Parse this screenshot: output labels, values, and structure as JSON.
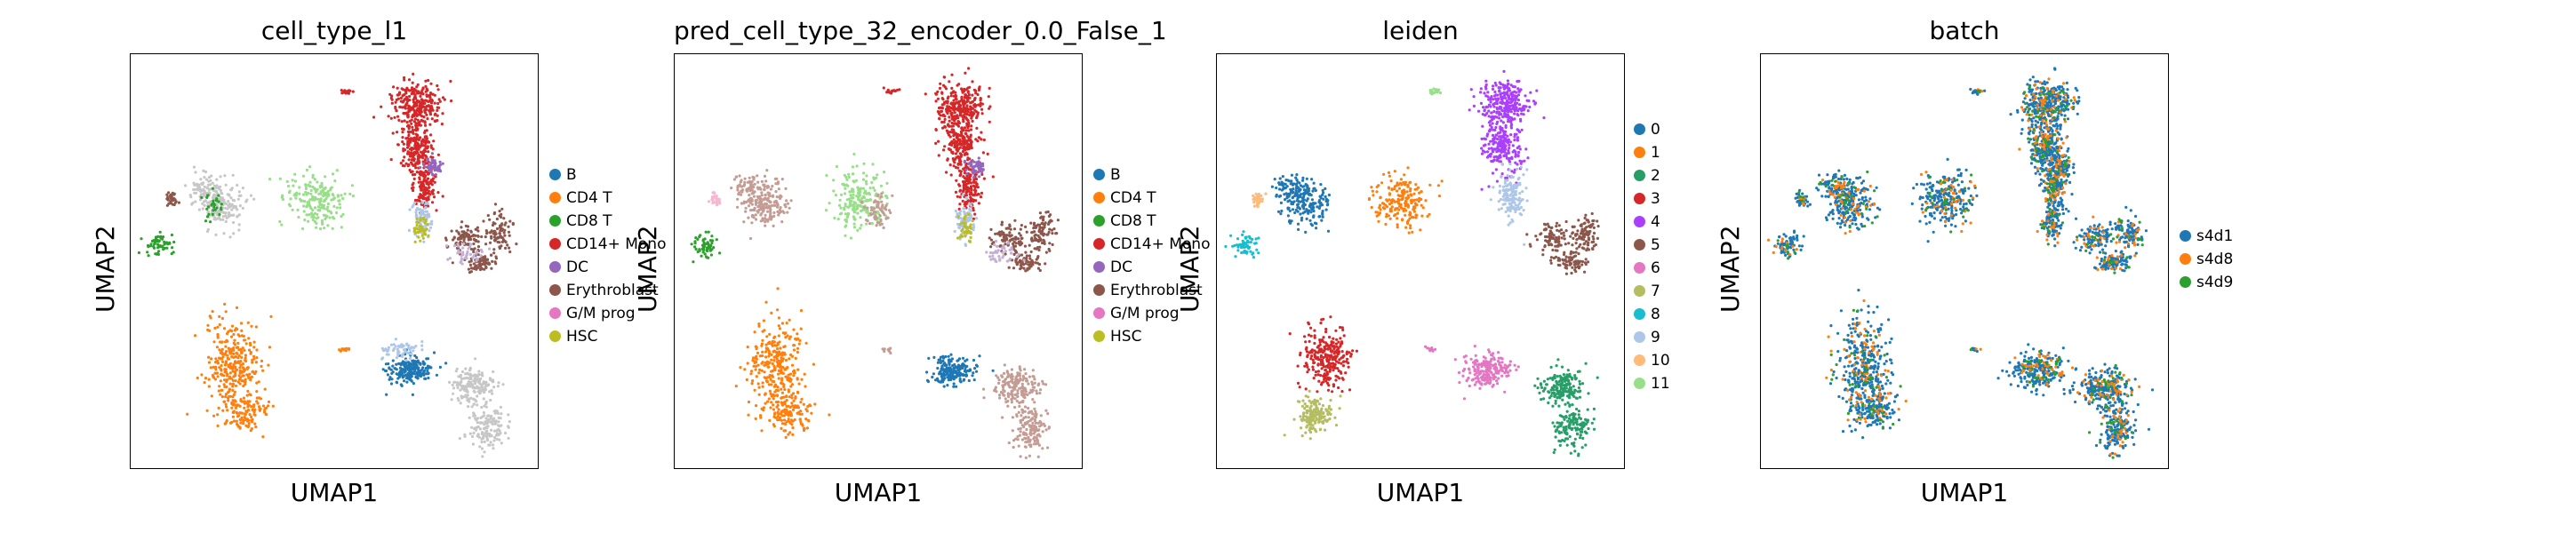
{
  "chart_data": [
    {
      "type": "scatter",
      "title": "cell_type_l1",
      "xlabel": "UMAP1",
      "ylabel": "UMAP2",
      "legend": [
        "B",
        "CD4 T",
        "CD8 T",
        "CD14+ Mono",
        "DC",
        "Erythroblast",
        "G/M prog",
        "HSC"
      ],
      "legend_colors": [
        "#1f77b4",
        "#ff7f0e",
        "#2ca02c",
        "#d62728",
        "#9467bd",
        "#8c564b",
        "#e377c2",
        "#bcbd22"
      ],
      "extra_colors": {
        "unlabeled": "#c7c7c7",
        "light_blue": "#aec7e8",
        "light_green": "#98df8a",
        "lavender": "#c5b0d5"
      },
      "legend_placement": "right"
    },
    {
      "type": "scatter",
      "title": "pred_cell_type_32_encoder_0.0_False_1",
      "xlabel": "UMAP1",
      "ylabel": "UMAP2",
      "legend": [
        "B",
        "CD4 T",
        "CD8 T",
        "CD14+ Mono",
        "DC",
        "Erythroblast",
        "G/M prog",
        "HSC"
      ],
      "legend_colors": [
        "#1f77b4",
        "#ff7f0e",
        "#2ca02c",
        "#d62728",
        "#9467bd",
        "#8c564b",
        "#e377c2",
        "#bcbd22"
      ],
      "extra_colors": {
        "tan": "#c49c94",
        "light_blue": "#aec7e8",
        "light_green": "#98df8a",
        "pink": "#f7b6d2",
        "lavender": "#c5b0d5"
      },
      "legend_placement": "right"
    },
    {
      "type": "scatter",
      "title": "leiden",
      "xlabel": "UMAP1",
      "ylabel": "UMAP2",
      "legend": [
        "0",
        "1",
        "2",
        "3",
        "4",
        "5",
        "6",
        "7",
        "8",
        "9",
        "10",
        "11"
      ],
      "legend_colors": [
        "#1f77b4",
        "#ff7f0e",
        "#279e68",
        "#d62728",
        "#aa40fc",
        "#8c564b",
        "#e377c2",
        "#b5bd61",
        "#17becf",
        "#aec7e8",
        "#ffbb78",
        "#98df8a"
      ],
      "legend_placement": "right"
    },
    {
      "type": "scatter",
      "title": "batch",
      "xlabel": "UMAP1",
      "ylabel": "UMAP2",
      "legend": [
        "s4d1",
        "s4d8",
        "s4d9"
      ],
      "legend_colors": [
        "#1f77b4",
        "#ff7f0e",
        "#2ca02c"
      ],
      "legend_placement": "right"
    }
  ]
}
